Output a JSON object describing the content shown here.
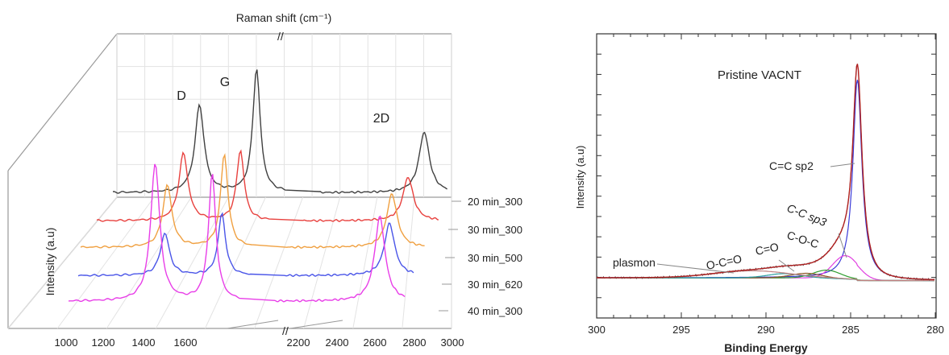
{
  "chart_data": [
    {
      "type": "line",
      "subtype": "raman-3d-waterfall",
      "title": "",
      "xlabel_top": "Raman shift (cm⁻¹)",
      "ylabel": "Intensity (a.u)",
      "x_ticks": [
        "1000",
        "1200",
        "1400",
        "1600",
        "2200",
        "2400",
        "2600",
        "2800",
        "3000"
      ],
      "xlim": [
        1000,
        3000
      ],
      "axis_break": "//",
      "grid": true,
      "peak_labels": [
        {
          "text": "D",
          "x": 1350
        },
        {
          "text": "G",
          "x": 1580
        },
        {
          "text": "2D",
          "x": 2690
        }
      ],
      "series": [
        {
          "name": "20 min_300",
          "color": "#404040",
          "peaks": [
            {
              "x": 1350,
              "h": 0.62
            },
            {
              "x": 1580,
              "h": 0.88
            },
            {
              "x": 2690,
              "h": 0.43
            }
          ]
        },
        {
          "name": "30 min_300",
          "color": "#e8413e",
          "peaks": [
            {
              "x": 1350,
              "h": 0.48
            },
            {
              "x": 1580,
              "h": 0.5
            },
            {
              "x": 2690,
              "h": 0.31
            }
          ]
        },
        {
          "name": "30 min_500",
          "color": "#f0a040",
          "peaks": [
            {
              "x": 1350,
              "h": 0.44
            },
            {
              "x": 1580,
              "h": 0.66
            },
            {
              "x": 2690,
              "h": 0.38
            }
          ]
        },
        {
          "name": "30 min_620",
          "color": "#4a55e8",
          "peaks": [
            {
              "x": 1350,
              "h": 0.3
            },
            {
              "x": 1580,
              "h": 0.44
            },
            {
              "x": 2690,
              "h": 0.37
            }
          ]
        },
        {
          "name": "40 min_300",
          "color": "#e83ee8",
          "peaks": [
            {
              "x": 1350,
              "h": 0.98
            },
            {
              "x": 1580,
              "h": 0.9
            },
            {
              "x": 2690,
              "h": 0.6
            }
          ]
        }
      ]
    },
    {
      "type": "line",
      "subtype": "xps-c1s",
      "title": "Pristine VACNT",
      "xlabel": "Binding Energy",
      "ylabel": "Intensity (a.u)",
      "xlim": [
        300,
        280
      ],
      "x_ticks": [
        "300",
        "295",
        "290",
        "285",
        "280"
      ],
      "grid": false,
      "annotations": [
        "C=C sp2",
        "C-C sp3",
        "C-O-C",
        "C=O",
        "O-C=O",
        "plasmon"
      ],
      "components": [
        {
          "name": "C=C sp2",
          "center": 284.6,
          "amp": 0.86,
          "width": 0.32,
          "color": "#3b3bd8"
        },
        {
          "name": "C-C sp3",
          "center": 285.3,
          "amp": 0.1,
          "width": 0.75,
          "color": "#e040e0"
        },
        {
          "name": "C-O-C",
          "center": 286.4,
          "amp": 0.035,
          "width": 0.8,
          "color": "#2f9e2f"
        },
        {
          "name": "C=O",
          "center": 287.6,
          "amp": 0.02,
          "width": 0.9,
          "color": "#8e5a2c"
        },
        {
          "name": "O-C=O",
          "center": 288.9,
          "amp": 0.018,
          "width": 1.0,
          "color": "#2aa0a0"
        },
        {
          "name": "plasmon",
          "center": 290.8,
          "amp": 0.03,
          "width": 2.2,
          "color": "#c08080"
        }
      ],
      "envelope_color": "#b02020",
      "raw_color": "#555555"
    }
  ]
}
